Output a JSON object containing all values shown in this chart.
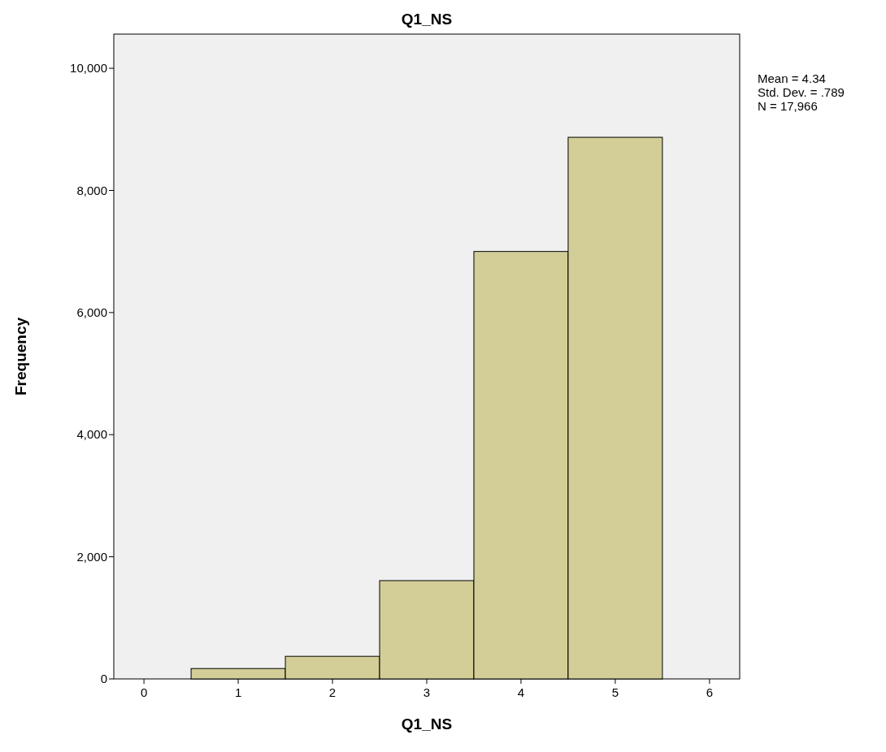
{
  "chart_data": {
    "type": "histogram",
    "title": "Q1_NS",
    "xlabel": "Q1_NS",
    "ylabel": "Frequency",
    "bins": [
      0.5,
      1.5,
      2.5,
      3.5,
      4.5,
      5.5
    ],
    "values": [
      170,
      370,
      1610,
      7000,
      8870
    ],
    "color": "#d3ce97",
    "xlim": [
      -0.32,
      6.32
    ],
    "xticks": [
      0,
      1,
      2,
      3,
      4,
      5,
      6
    ],
    "ylim": [
      0,
      10560
    ],
    "yticks": [
      0,
      {
        "value": 2000,
        "label": "2,000"
      },
      {
        "value": 4000,
        "label": "4,000"
      },
      {
        "value": 6000,
        "label": "6,000"
      },
      {
        "value": 8000,
        "label": "8,000"
      },
      {
        "value": 10000,
        "label": "10,000"
      }
    ],
    "grid": false,
    "annotations": [
      "Mean = 4.34",
      "Std. Dev. = .789",
      "N = 17,966"
    ]
  }
}
